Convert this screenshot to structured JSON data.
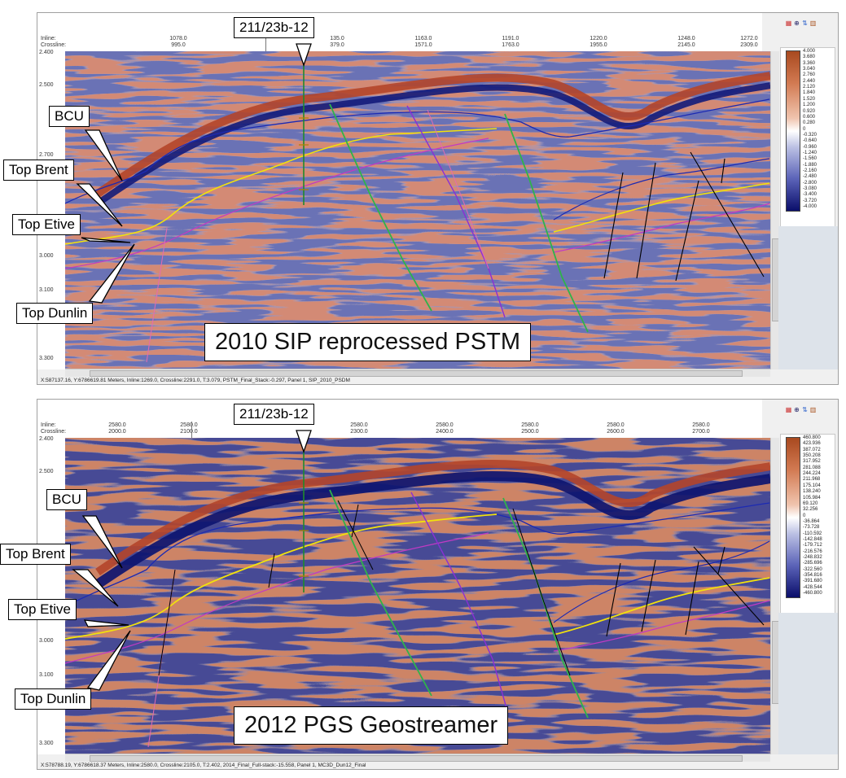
{
  "top": {
    "header": {
      "inline_label": "Inline:",
      "crossline_label": "Crossline:",
      "inlines": [
        "1078.0",
        "135.0",
        "1163.0",
        "1191.0",
        "1220.0",
        "1248.0",
        "1272.0"
      ],
      "crosslines": [
        "995.0",
        "379.0",
        "1571.0",
        "1763.0",
        "1955.0",
        "2145.0",
        "2309.0"
      ]
    },
    "yticks": [
      "2.400",
      "2.500",
      "2.700",
      "3.000",
      "3.100",
      "3.300"
    ],
    "status": "X:587137.16, Y:6786619.81 Meters,   Inline:1269.0,   Crossline:2291.0,   T:3.079,   PSTM_Final_Stack:-0.297,   Panel 1,   SIP_2010_PSDM",
    "colorbar": [
      "4.000",
      "3.680",
      "3.360",
      "3.040",
      "2.760",
      "2.440",
      "2.120",
      "1.840",
      "1.520",
      "1.200",
      "0.920",
      "0.600",
      "0.280",
      "0",
      "-0.320",
      "-0.640",
      "-0.960",
      "-1.240",
      "-1.560",
      "-1.880",
      "-2.160",
      "-2.480",
      "-2.800",
      "-3.080",
      "-3.400",
      "-3.720",
      "-4.000"
    ],
    "caption": "2010 SIP reprocessed PSTM",
    "well": "211/23b-12",
    "callouts": {
      "bcu": "BCU",
      "brent": "Top Brent",
      "etive": "Top Etive",
      "dunlin": "Top Dunlin"
    }
  },
  "bottom": {
    "header": {
      "inline_label": "Inline:",
      "crossline_label": "Crossline:",
      "inlines": [
        "2580.0",
        "2580.0",
        "2580.0",
        "2580.0",
        "2580.0",
        "2580.0",
        "2580.0"
      ],
      "crosslines": [
        "2000.0",
        "2100.0",
        "2300.0",
        "2400.0",
        "2500.0",
        "2600.0",
        "2700.0"
      ]
    },
    "yticks": [
      "2.400",
      "2.500",
      "3.000",
      "3.100",
      "3.300"
    ],
    "status": "X:578788.19, Y:6786618.37 Meters,   Inline:2580.0,   Crossline:2105.0,   T:2.402,   2014_Final_Full-stack:-15.558,   Panel 1,   MC3D_Dun12_Final",
    "colorbar": [
      "460.800",
      "423.936",
      "387.072",
      "350.208",
      "317.952",
      "281.088",
      "244.224",
      "211.968",
      "175.104",
      "138.240",
      "105.984",
      "69.120",
      "32.256",
      "0",
      "-36.864",
      "-73.728",
      "-110.592",
      "-142.848",
      "-179.712",
      "-216.576",
      "-248.832",
      "-285.696",
      "-322.560",
      "-354.816",
      "-391.680",
      "-428.544",
      "-460.800"
    ],
    "caption": "2012 PGS Geostreamer",
    "well": "211/23b-12",
    "callouts": {
      "bcu": "BCU",
      "brent": "Top Brent",
      "etive": "Top Etive",
      "dunlin": "Top Dunlin"
    }
  },
  "colors": {
    "positive": "#b4452a",
    "negative": "#131b7a",
    "bcu": "#1c2ab3",
    "brent": "#f2e20c",
    "dunlin": "#c23ac4",
    "fault_green": "#2fb34a",
    "fault_purple": "#8a2fd6",
    "well": "#1f8a2b"
  }
}
